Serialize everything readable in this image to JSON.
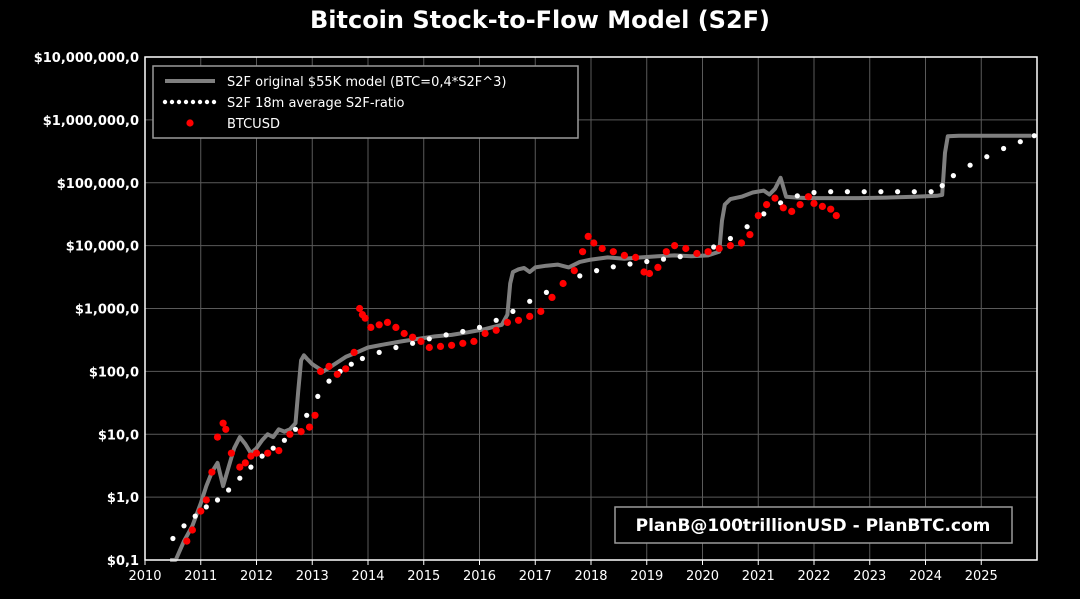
{
  "chart_data": {
    "type": "line",
    "title": "Bitcoin Stock-to-Flow Model (S2F)",
    "xlabel": "",
    "ylabel": "",
    "y_scale": "log",
    "ylim": [
      0.1,
      10000000
    ],
    "xlim": [
      2010,
      2026
    ],
    "grid": true,
    "legend_position": "top-left",
    "x_tick_labels": [
      "2010",
      "2011",
      "2012",
      "2013",
      "2014",
      "2015",
      "2016",
      "2017",
      "2018",
      "2019",
      "2020",
      "2021",
      "2022",
      "2023",
      "2024",
      "2025"
    ],
    "y_tick_labels": [
      "$0,1",
      "$1,0",
      "$10,0",
      "$100,0",
      "$1,000,0",
      "$10,000,0",
      "$100,000,0",
      "$1,000,000,0",
      "$10,000,000,0"
    ],
    "annotation": "PlanB@100trillionUSD - PlanBTC.com",
    "series": [
      {
        "name": "S2F original $55K model (BTC=0,4*S2F^3)",
        "style": "solid-line",
        "color": "#7f7f7f",
        "x": [
          2010.45,
          2010.55,
          2010.7,
          2010.85,
          2011.0,
          2011.1,
          2011.2,
          2011.3,
          2011.4,
          2011.5,
          2011.6,
          2011.7,
          2011.8,
          2011.9,
          2012.0,
          2012.1,
          2012.2,
          2012.3,
          2012.4,
          2012.5,
          2012.6,
          2012.7,
          2012.75,
          2012.8,
          2012.85,
          2012.9,
          2013.0,
          2013.2,
          2013.4,
          2013.6,
          2013.8,
          2014.0,
          2014.3,
          2014.6,
          2014.9,
          2015.2,
          2015.5,
          2015.8,
          2016.1,
          2016.4,
          2016.5,
          2016.55,
          2016.6,
          2016.7,
          2016.8,
          2016.9,
          2017.0,
          2017.2,
          2017.4,
          2017.6,
          2017.8,
          2018.0,
          2018.3,
          2018.6,
          2018.9,
          2019.2,
          2019.5,
          2019.8,
          2020.1,
          2020.3,
          2020.35,
          2020.4,
          2020.5,
          2020.7,
          2020.9,
          2021.1,
          2021.2,
          2021.3,
          2021.4,
          2021.5,
          2021.7,
          2021.9,
          2022.3,
          2022.8,
          2023.3,
          2023.8,
          2024.2,
          2024.3,
          2024.35,
          2024.4,
          2024.6,
          2024.9,
          2025.2,
          2025.5,
          2025.9
        ],
        "y": [
          0.08,
          0.06,
          0.2,
          0.35,
          0.8,
          1.5,
          2.5,
          3.5,
          1.5,
          3,
          6,
          9,
          7,
          5,
          6,
          8,
          10,
          9,
          12,
          11,
          12,
          15,
          50,
          150,
          180,
          160,
          130,
          100,
          130,
          170,
          200,
          240,
          270,
          300,
          330,
          360,
          380,
          420,
          470,
          550,
          800,
          2500,
          3800,
          4200,
          4400,
          3800,
          4500,
          4800,
          5000,
          4500,
          5500,
          6000,
          6500,
          6200,
          6500,
          6800,
          7000,
          6800,
          7000,
          8000,
          25000,
          45000,
          55000,
          60000,
          70000,
          75000,
          65000,
          80000,
          120000,
          60000,
          58000,
          57000,
          57000,
          57000,
          58000,
          60000,
          62000,
          64000,
          300000,
          550000,
          560000,
          560000,
          560000,
          560000,
          560000
        ]
      },
      {
        "name": "S2F 18m average S2F-ratio",
        "style": "dotted-line",
        "color": "#ffffff",
        "x": [
          2010.5,
          2010.7,
          2010.9,
          2011.1,
          2011.3,
          2011.5,
          2011.7,
          2011.9,
          2012.1,
          2012.3,
          2012.5,
          2012.7,
          2012.9,
          2013.1,
          2013.3,
          2013.5,
          2013.7,
          2013.9,
          2014.2,
          2014.5,
          2014.8,
          2015.1,
          2015.4,
          2015.7,
          2016.0,
          2016.3,
          2016.6,
          2016.9,
          2017.2,
          2017.5,
          2017.8,
          2018.1,
          2018.4,
          2018.7,
          2019.0,
          2019.3,
          2019.6,
          2019.9,
          2020.2,
          2020.5,
          2020.8,
          2021.1,
          2021.4,
          2021.7,
          2022.0,
          2022.3,
          2022.6,
          2022.9,
          2023.2,
          2023.5,
          2023.8,
          2024.1,
          2024.3,
          2024.5,
          2024.8,
          2025.1,
          2025.4,
          2025.7,
          2025.95
        ],
        "y": [
          0.22,
          0.35,
          0.5,
          0.7,
          0.9,
          1.3,
          2,
          3,
          4.5,
          6,
          8,
          12,
          20,
          40,
          70,
          100,
          130,
          160,
          200,
          240,
          280,
          330,
          380,
          430,
          500,
          650,
          900,
          1300,
          1800,
          2500,
          3300,
          4000,
          4600,
          5100,
          5600,
          6100,
          6700,
          7500,
          9500,
          13000,
          20000,
          32000,
          48000,
          62000,
          70000,
          72000,
          72000,
          72000,
          72000,
          72000,
          72000,
          72000,
          90000,
          130000,
          190000,
          260000,
          350000,
          450000,
          560000
        ]
      },
      {
        "name": "BTCUSD",
        "style": "dots",
        "color": "#ff0000",
        "x": [
          2010.75,
          2010.85,
          2011.0,
          2011.1,
          2011.2,
          2011.3,
          2011.4,
          2011.45,
          2011.55,
          2011.7,
          2011.8,
          2011.9,
          2012.0,
          2012.2,
          2012.4,
          2012.6,
          2012.8,
          2012.95,
          2013.05,
          2013.15,
          2013.3,
          2013.45,
          2013.6,
          2013.75,
          2013.85,
          2013.9,
          2013.95,
          2014.05,
          2014.2,
          2014.35,
          2014.5,
          2014.65,
          2014.8,
          2014.95,
          2015.1,
          2015.3,
          2015.5,
          2015.7,
          2015.9,
          2016.1,
          2016.3,
          2016.5,
          2016.7,
          2016.9,
          2017.1,
          2017.3,
          2017.5,
          2017.7,
          2017.85,
          2017.95,
          2018.05,
          2018.2,
          2018.4,
          2018.6,
          2018.8,
          2018.95,
          2019.05,
          2019.2,
          2019.35,
          2019.5,
          2019.7,
          2019.9,
          2020.1,
          2020.3,
          2020.5,
          2020.7,
          2020.85,
          2021.0,
          2021.15,
          2021.3,
          2021.45,
          2021.6,
          2021.75,
          2021.9,
          2022.0,
          2022.15,
          2022.3,
          2022.4
        ],
        "y": [
          0.2,
          0.3,
          0.6,
          0.9,
          2.5,
          9,
          15,
          12,
          5,
          3,
          3.5,
          4.5,
          5,
          5,
          5.5,
          10,
          11,
          13,
          20,
          100,
          120,
          90,
          110,
          200,
          1000,
          800,
          700,
          500,
          550,
          600,
          500,
          400,
          350,
          300,
          240,
          250,
          260,
          280,
          300,
          400,
          450,
          600,
          650,
          750,
          900,
          1500,
          2500,
          4000,
          8000,
          14000,
          11000,
          9000,
          8000,
          7000,
          6500,
          3800,
          3600,
          4500,
          8000,
          10000,
          9000,
          7500,
          8000,
          9000,
          10000,
          11000,
          15000,
          30000,
          45000,
          57000,
          40000,
          35000,
          45000,
          60000,
          47000,
          42000,
          38000,
          30000
        ]
      }
    ]
  }
}
